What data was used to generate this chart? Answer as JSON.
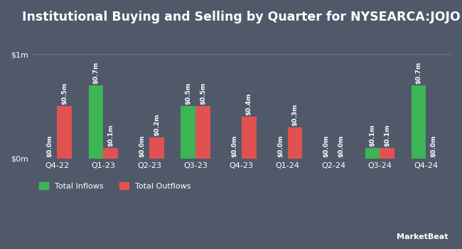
{
  "title": "Institutional Buying and Selling by Quarter for NYSEARCA:JOJO",
  "quarters": [
    "Q4-22",
    "Q1-23",
    "Q2-23",
    "Q3-23",
    "Q4-23",
    "Q1-24",
    "Q2-24",
    "Q3-24",
    "Q4-24"
  ],
  "inflows": [
    0.0,
    0.7,
    0.0,
    0.5,
    0.0,
    0.0,
    0.0,
    0.1,
    0.7
  ],
  "outflows": [
    0.5,
    0.1,
    0.2,
    0.5,
    0.4,
    0.3,
    0.0,
    0.1,
    0.0
  ],
  "inflow_labels": [
    "$0.0m",
    "$0.7m",
    "$0.0m",
    "$0.5m",
    "$0.0m",
    "$0.0m",
    "$0.0m",
    "$0.1m",
    "$0.7m"
  ],
  "outflow_labels": [
    "$0.5m",
    "$0.1m",
    "$0.2m",
    "$0.5m",
    "$0.4m",
    "$0.3m",
    "$0.0m",
    "$0.1m",
    "$0.0m"
  ],
  "inflow_color": "#3cb554",
  "outflow_color": "#e05252",
  "bg_color": "#50596a",
  "plot_bg_color": "#50596a",
  "text_color": "#ffffff",
  "grid_color": "#6b7a8d",
  "bar_width": 0.32,
  "ylim": [
    0,
    1.15
  ],
  "yticks": [
    0,
    1.0
  ],
  "ytick_labels": [
    "$0m",
    "$1m"
  ],
  "legend_inflow": "Total Inflows",
  "legend_outflow": "Total Outflows",
  "title_fontsize": 12.5,
  "label_fontsize": 6.5,
  "tick_fontsize": 8
}
